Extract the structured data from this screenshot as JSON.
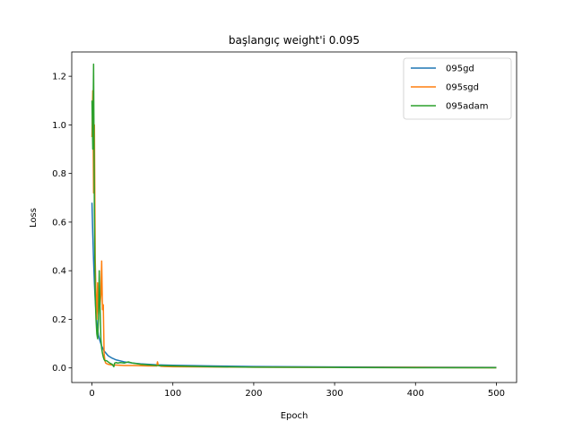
{
  "chart_data": {
    "type": "line",
    "title": "başlangıç weight'i 0.095",
    "xlabel": "Epoch",
    "ylabel": "Loss",
    "xlim": [
      -25,
      525
    ],
    "ylim": [
      -0.06,
      1.3
    ],
    "xticks": [
      0,
      100,
      200,
      300,
      400,
      500
    ],
    "yticks": [
      0.0,
      0.2,
      0.4,
      0.6,
      0.8,
      1.0,
      1.2
    ],
    "ytick_labels": [
      "0.0",
      "0.2",
      "0.4",
      "0.6",
      "0.8",
      "1.0",
      "1.2"
    ],
    "grid": false,
    "legend_position": "top-right",
    "series": [
      {
        "name": "095gd",
        "color": "#1f77b4",
        "x": [
          0,
          1,
          2,
          3,
          4,
          5,
          6,
          7,
          8,
          10,
          12,
          15,
          20,
          25,
          30,
          40,
          50,
          60,
          80,
          100,
          150,
          200,
          300,
          400,
          500
        ],
        "y": [
          0.68,
          0.55,
          0.44,
          0.35,
          0.28,
          0.23,
          0.19,
          0.16,
          0.135,
          0.11,
          0.09,
          0.07,
          0.05,
          0.04,
          0.033,
          0.025,
          0.02,
          0.017,
          0.013,
          0.011,
          0.008,
          0.006,
          0.004,
          0.003,
          0.002
        ]
      },
      {
        "name": "095sgd",
        "color": "#ff7f0e",
        "x": [
          0,
          1,
          2,
          3,
          4,
          5,
          6,
          7,
          8,
          9,
          10,
          11,
          12,
          13,
          14,
          15,
          16,
          17,
          18,
          20,
          25,
          30,
          40,
          50,
          60,
          70,
          80,
          81,
          82,
          85,
          90,
          100,
          150,
          200,
          300,
          400,
          500
        ],
        "y": [
          0.95,
          1.14,
          0.72,
          1.0,
          0.45,
          0.3,
          0.2,
          0.35,
          0.22,
          0.28,
          0.26,
          0.3,
          0.44,
          0.24,
          0.26,
          0.06,
          0.03,
          0.02,
          0.018,
          0.015,
          0.012,
          0.012,
          0.01,
          0.01,
          0.009,
          0.008,
          0.008,
          0.025,
          0.01,
          0.007,
          0.006,
          0.005,
          0.004,
          0.003,
          0.002,
          0.002,
          0.001
        ]
      },
      {
        "name": "095adam",
        "color": "#2ca02c",
        "x": [
          0,
          1,
          2,
          3,
          4,
          5,
          6,
          7,
          8,
          9,
          10,
          11,
          12,
          13,
          14,
          15,
          16,
          18,
          20,
          22,
          25,
          27,
          28,
          30,
          32,
          35,
          40,
          45,
          50,
          60,
          80,
          100,
          150,
          200,
          300,
          400,
          500
        ],
        "y": [
          1.1,
          0.9,
          1.25,
          0.65,
          0.3,
          0.2,
          0.14,
          0.12,
          0.2,
          0.4,
          0.25,
          0.12,
          0.08,
          0.06,
          0.045,
          0.035,
          0.03,
          0.03,
          0.025,
          0.02,
          0.015,
          0.005,
          0.02,
          0.022,
          0.02,
          0.022,
          0.02,
          0.025,
          0.02,
          0.015,
          0.01,
          0.008,
          0.005,
          0.003,
          0.002,
          0.001,
          0.001
        ]
      }
    ]
  }
}
